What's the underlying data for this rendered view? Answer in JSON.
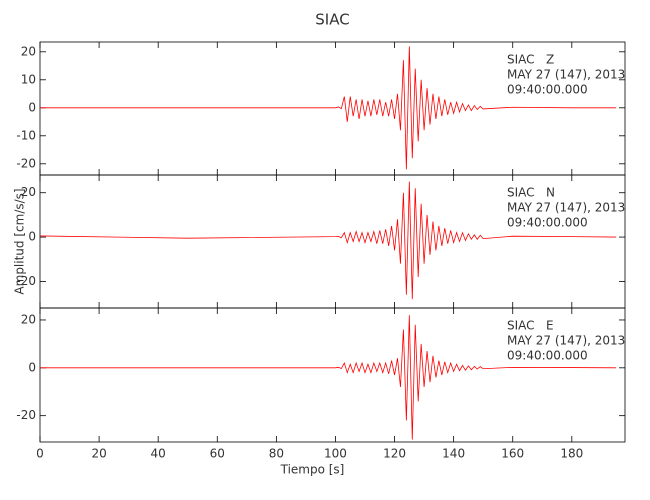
{
  "chart_data": [
    {
      "type": "line",
      "title": "SIAC",
      "annotations": [
        "SIAC   Z",
        "MAY 27 (147), 2013",
        "09:40:00.000"
      ],
      "xlim": [
        0,
        198
      ],
      "xticks": [
        0,
        20,
        40,
        60,
        80,
        100,
        120,
        140,
        160,
        180
      ],
      "ylim": [
        -24,
        23.5
      ],
      "yticks": [
        -20,
        -10,
        0,
        10,
        20
      ],
      "series": [
        {
          "color": "#ff0000",
          "x": [
            0,
            50,
            100,
            101,
            102,
            103,
            104,
            105,
            106,
            107,
            108,
            109,
            110,
            111,
            112,
            113,
            114,
            115,
            116,
            117,
            118,
            119,
            120,
            121,
            122,
            123,
            124,
            125,
            126,
            127,
            128,
            129,
            130,
            131,
            132,
            133,
            134,
            135,
            136,
            137,
            138,
            139,
            140,
            141,
            142,
            143,
            144,
            145,
            146,
            147,
            148,
            149,
            150,
            160,
            180,
            195
          ],
          "values": [
            0,
            0,
            0,
            0.3,
            -0.3,
            4,
            -5,
            4,
            -3,
            3,
            -4,
            3,
            -3,
            2.5,
            -3,
            3,
            -2.5,
            3,
            -3,
            2,
            -3,
            3,
            -4,
            5,
            -8,
            17,
            -22,
            22,
            -18,
            14,
            -12,
            10,
            -8,
            7,
            -6,
            5,
            -4,
            4,
            -3,
            3,
            -2.5,
            2,
            -2,
            2,
            -1.5,
            1.5,
            -1,
            1,
            -1,
            0.8,
            -0.6,
            0.5,
            -0.4,
            0.2,
            0,
            0
          ]
        }
      ]
    },
    {
      "type": "line",
      "y_label": "Amplitud [cm/s/s]",
      "annotations": [
        "SIAC   N",
        "MAY 27 (147), 2013",
        "09:40:00.000"
      ],
      "xlim": [
        0,
        198
      ],
      "xticks": [
        0,
        20,
        40,
        60,
        80,
        100,
        120,
        140,
        160,
        180
      ],
      "ylim": [
        -32,
        28
      ],
      "yticks": [
        -20,
        0,
        20
      ],
      "series": [
        {
          "color": "#ff0000",
          "x": [
            0,
            50,
            100,
            101,
            102,
            103,
            104,
            105,
            106,
            107,
            108,
            109,
            110,
            111,
            112,
            113,
            114,
            115,
            116,
            117,
            118,
            119,
            120,
            121,
            122,
            123,
            124,
            125,
            126,
            127,
            128,
            129,
            130,
            131,
            132,
            133,
            134,
            135,
            136,
            137,
            138,
            139,
            140,
            141,
            142,
            143,
            144,
            145,
            146,
            147,
            148,
            149,
            150,
            160,
            180,
            195
          ],
          "values": [
            0.5,
            -0.5,
            0.2,
            0.3,
            -0.3,
            2,
            -2.5,
            2,
            -2,
            2.5,
            -2,
            2,
            -2.5,
            2,
            -2,
            2.5,
            -3,
            3,
            -3,
            3.5,
            -4,
            5,
            -6,
            8,
            -12,
            20,
            -26,
            25,
            -28,
            22,
            -18,
            15,
            -12,
            10,
            -8,
            7,
            -6,
            5,
            -4,
            4,
            -3,
            3,
            -2.5,
            2,
            -2,
            2,
            -1.5,
            1.5,
            -1,
            1,
            -1,
            0.8,
            -0.7,
            0.4,
            0.2,
            0
          ]
        }
      ]
    },
    {
      "type": "line",
      "x_label": "Tiempo [s]",
      "annotations": [
        "SIAC   E",
        "MAY 27 (147), 2013",
        "09:40:00.000"
      ],
      "xlim": [
        0,
        198
      ],
      "xticks": [
        0,
        20,
        40,
        60,
        80,
        100,
        120,
        140,
        160,
        180
      ],
      "ylim": [
        -31,
        25
      ],
      "yticks": [
        -20,
        0,
        20
      ],
      "series": [
        {
          "color": "#ff0000",
          "x": [
            0,
            50,
            100,
            101,
            102,
            103,
            104,
            105,
            106,
            107,
            108,
            109,
            110,
            111,
            112,
            113,
            114,
            115,
            116,
            117,
            118,
            119,
            120,
            121,
            122,
            123,
            124,
            125,
            126,
            127,
            128,
            129,
            130,
            131,
            132,
            133,
            134,
            135,
            136,
            137,
            138,
            139,
            140,
            141,
            142,
            143,
            144,
            145,
            146,
            147,
            148,
            149,
            150,
            160,
            180,
            195
          ],
          "values": [
            0,
            0,
            0,
            0.2,
            -0.3,
            2,
            -2,
            1.5,
            -2,
            2,
            -1.5,
            2,
            -2,
            1.5,
            -2,
            2,
            -1.5,
            2,
            -2,
            2,
            -2.5,
            3,
            -3,
            4,
            -8,
            16,
            -22,
            22,
            -30,
            18,
            -14,
            10,
            -8,
            7,
            -6,
            5,
            -4,
            3,
            -3,
            2.5,
            -2,
            2,
            -1.5,
            1.5,
            -1.2,
            1,
            -1,
            0.8,
            -0.8,
            0.6,
            -0.5,
            0.5,
            -0.4,
            0.2,
            0.1,
            0
          ]
        }
      ]
    }
  ]
}
